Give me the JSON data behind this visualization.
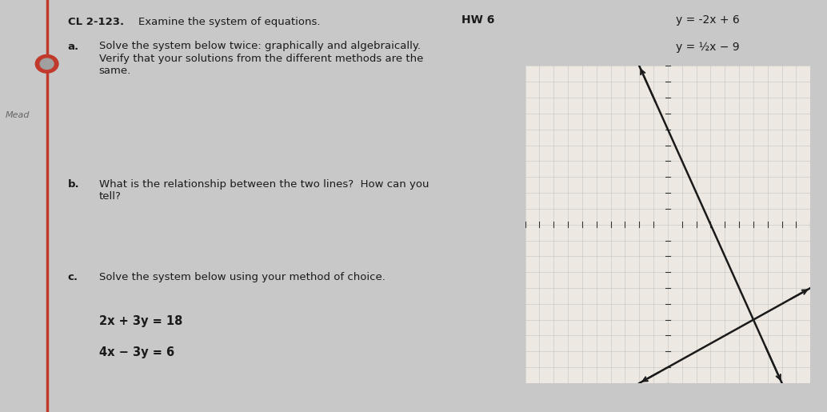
{
  "hw_label": "HW 6",
  "problem_label": "CL 2-123.",
  "problem_text": "Examine the system of equations.",
  "eq1": "y = -2x + 6",
  "eq2": "y = ½x − 9",
  "part_a_label": "a.",
  "part_a_text": "Solve the system below twice: graphically and algebraically.\nVerify that your solutions from the different methods are the\nsame.",
  "part_b_label": "b.",
  "part_b_text": "What is the relationship between the two lines?  How can you\ntell?",
  "part_c_label": "c.",
  "part_c_text": "Solve the system below using your method of choice.",
  "sys2_eq1": "2x + 3y = 18",
  "sys2_eq2": "4x − 3y = 6",
  "bg_color": "#c8c8c8",
  "paper_color": "#f0ede6",
  "red_margin_color": "#c0392b",
  "text_color": "#1a1a1a",
  "grid_color": "#aaaaaa",
  "axis_color": "#333333",
  "line_color": "#1a1a1a",
  "xlim": [
    -10,
    10
  ],
  "ylim": [
    -10,
    10
  ],
  "figsize": [
    10.34,
    5.15
  ],
  "dpi": 100
}
